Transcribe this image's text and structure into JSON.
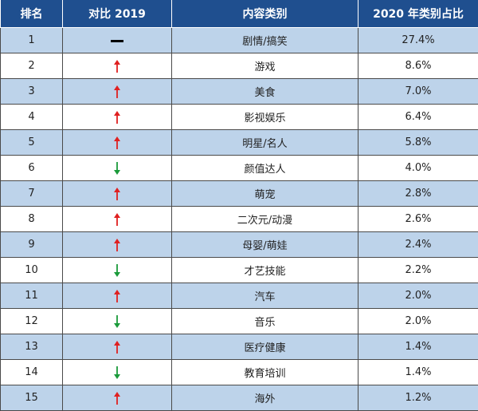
{
  "header": {
    "rank": "排名",
    "compare": "对比 2019",
    "category": "内容类别",
    "share": "2020 年类别占比"
  },
  "colors": {
    "header_bg": "#1f4f8f",
    "row_tint": "#bdd3ea",
    "trend_up": "#e02020",
    "trend_down": "#1a9a3a",
    "trend_same": "#000000"
  },
  "rows": [
    {
      "rank": "1",
      "trend": "same",
      "category": "剧情/搞笑",
      "share": "27.4%"
    },
    {
      "rank": "2",
      "trend": "up",
      "category": "游戏",
      "share": "8.6%"
    },
    {
      "rank": "3",
      "trend": "up",
      "category": "美食",
      "share": "7.0%"
    },
    {
      "rank": "4",
      "trend": "up",
      "category": "影视娱乐",
      "share": "6.4%"
    },
    {
      "rank": "5",
      "trend": "up",
      "category": "明星/名人",
      "share": "5.8%"
    },
    {
      "rank": "6",
      "trend": "down",
      "category": "颜值达人",
      "share": "4.0%"
    },
    {
      "rank": "7",
      "trend": "up",
      "category": "萌宠",
      "share": "2.8%"
    },
    {
      "rank": "8",
      "trend": "up",
      "category": "二次元/动漫",
      "share": "2.6%"
    },
    {
      "rank": "9",
      "trend": "up",
      "category": "母婴/萌娃",
      "share": "2.4%"
    },
    {
      "rank": "10",
      "trend": "down",
      "category": "才艺技能",
      "share": "2.2%"
    },
    {
      "rank": "11",
      "trend": "up",
      "category": "汽车",
      "share": "2.0%"
    },
    {
      "rank": "12",
      "trend": "down",
      "category": "音乐",
      "share": "2.0%"
    },
    {
      "rank": "13",
      "trend": "up",
      "category": "医疗健康",
      "share": "1.4%"
    },
    {
      "rank": "14",
      "trend": "down",
      "category": "教育培训",
      "share": "1.4%"
    },
    {
      "rank": "15",
      "trend": "up",
      "category": "海外",
      "share": "1.2%"
    }
  ]
}
